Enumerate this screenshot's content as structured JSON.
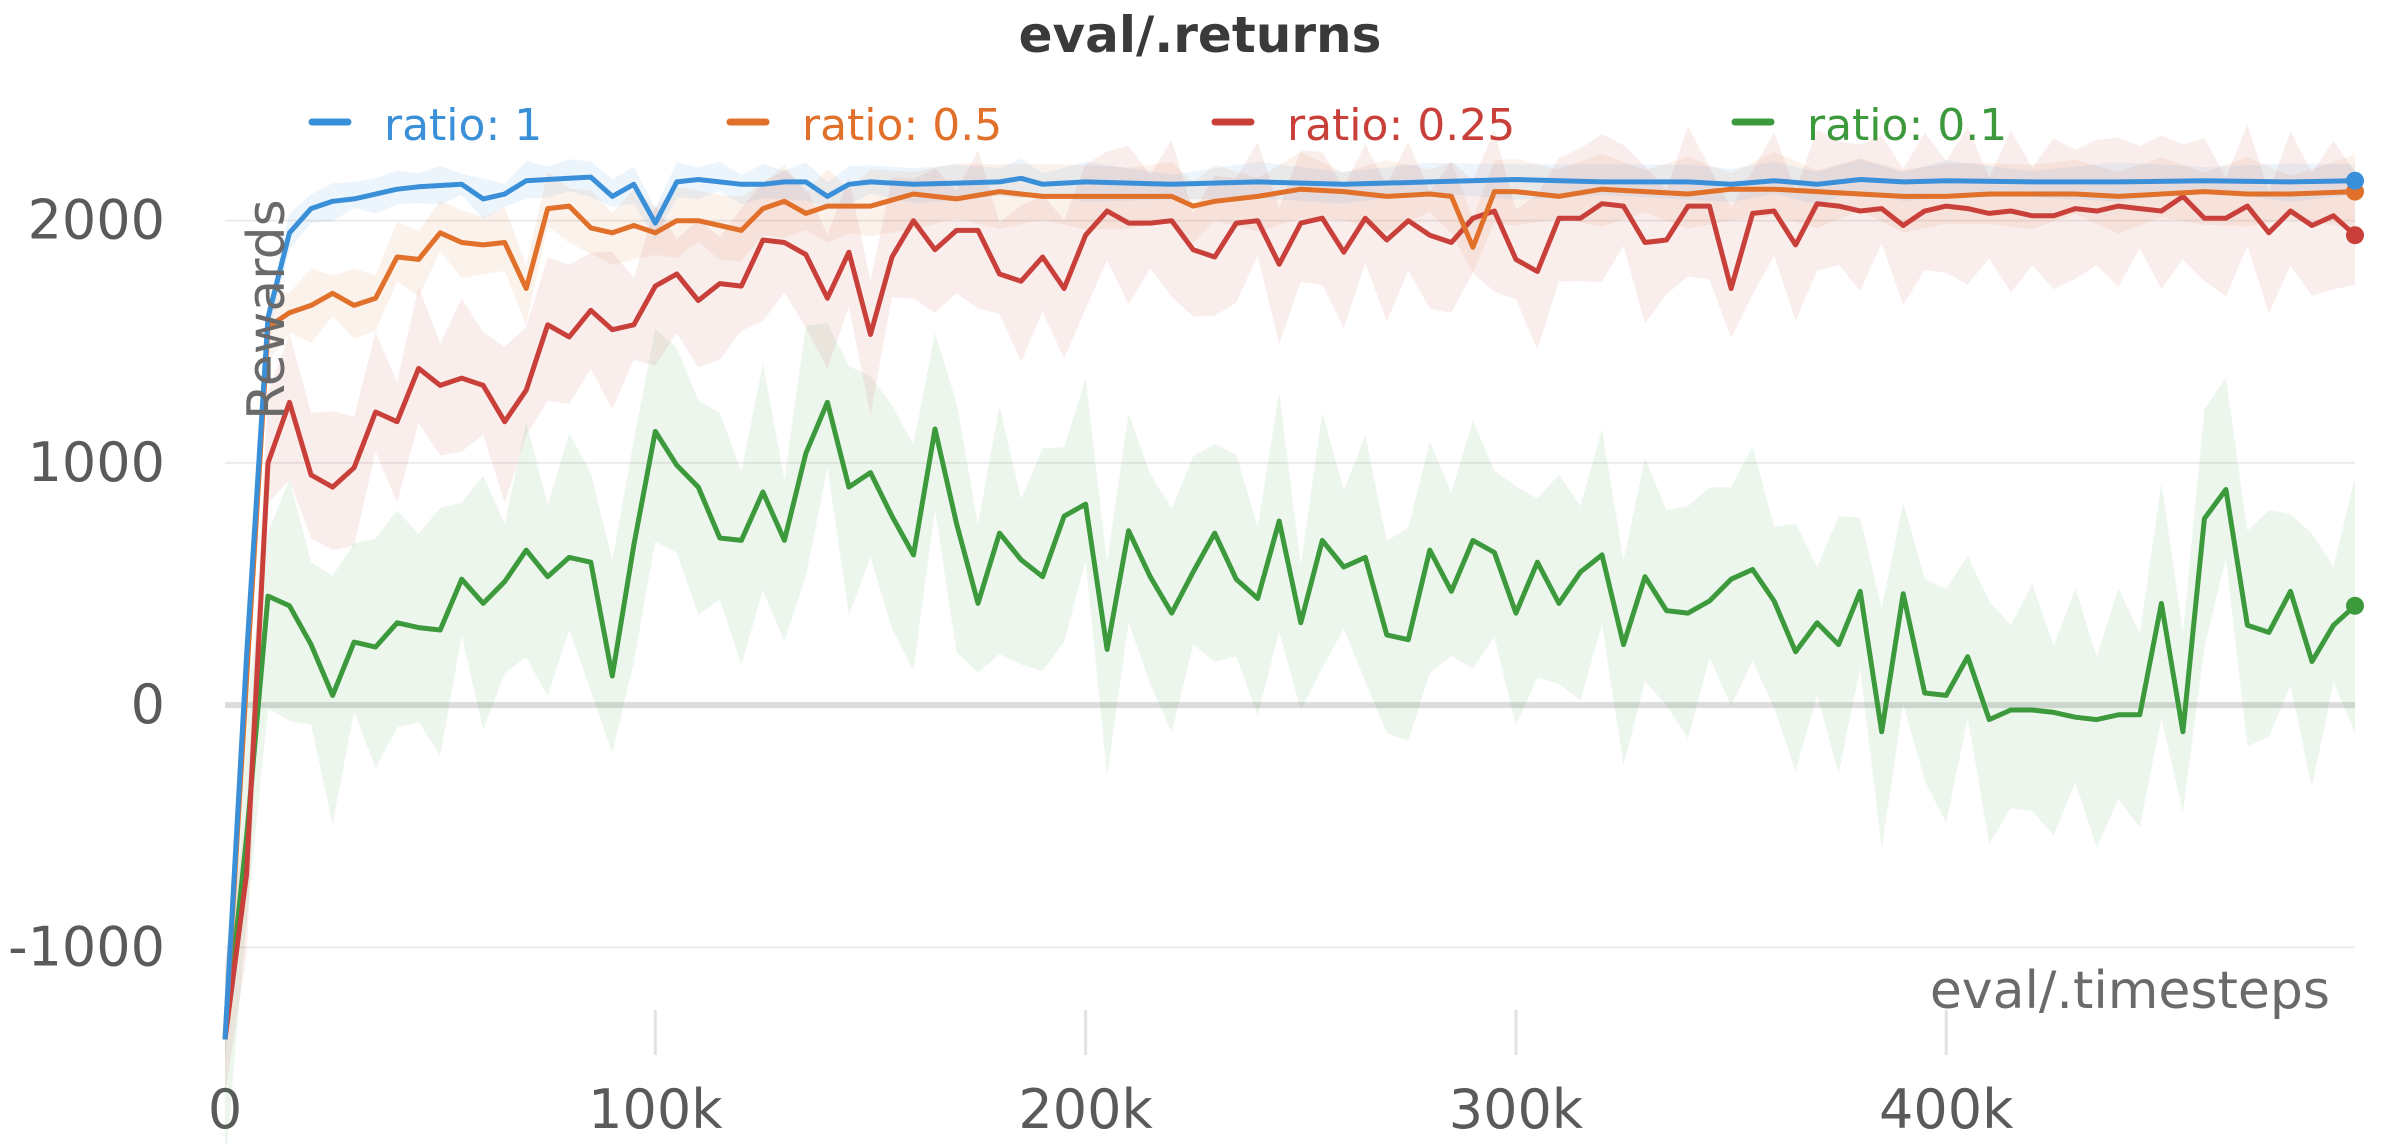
{
  "chart_data": {
    "type": "line",
    "title": "eval/.returns",
    "xlabel": "eval/.timesteps",
    "ylabel": "Rewards",
    "xlim": [
      0,
      495000
    ],
    "ylim": [
      -1300,
      2300
    ],
    "x_ticks": [
      {
        "value": 0,
        "label": "0"
      },
      {
        "value": 100000,
        "label": "100k"
      },
      {
        "value": 200000,
        "label": "200k"
      },
      {
        "value": 300000,
        "label": "300k"
      },
      {
        "value": 400000,
        "label": "400k"
      }
    ],
    "y_ticks": [
      {
        "value": -1000,
        "label": "-1000"
      },
      {
        "value": 0,
        "label": "0"
      },
      {
        "value": 1000,
        "label": "1000"
      },
      {
        "value": 2000,
        "label": "2000"
      }
    ],
    "grid": "horizontal",
    "legend_position": "top",
    "shaded_band": true,
    "series": [
      {
        "name": "ratio: 1",
        "color": "#3a8fd9",
        "x": [
          0,
          5000,
          10000,
          15000,
          20000,
          25000,
          30000,
          35000,
          40000,
          45000,
          50000,
          55000,
          60000,
          65000,
          70000,
          75000,
          80000,
          85000,
          90000,
          95000,
          100000,
          105000,
          110000,
          115000,
          120000,
          125000,
          130000,
          135000,
          140000,
          145000,
          150000,
          160000,
          170000,
          180000,
          185000,
          190000,
          200000,
          220000,
          240000,
          260000,
          280000,
          300000,
          320000,
          340000,
          350000,
          360000,
          370000,
          380000,
          390000,
          400000,
          420000,
          440000,
          460000,
          480000,
          495000
        ],
        "values": [
          -1380,
          200,
          1600,
          1950,
          2050,
          2080,
          2090,
          2110,
          2130,
          2140,
          2145,
          2150,
          2090,
          2110,
          2165,
          2170,
          2175,
          2180,
          2100,
          2150,
          1990,
          2160,
          2170,
          2160,
          2150,
          2150,
          2160,
          2160,
          2100,
          2150,
          2160,
          2150,
          2155,
          2160,
          2175,
          2150,
          2160,
          2150,
          2160,
          2150,
          2160,
          2170,
          2160,
          2160,
          2150,
          2165,
          2150,
          2170,
          2160,
          2165,
          2160,
          2160,
          2165,
          2160,
          2165
        ],
        "band_width": 60
      },
      {
        "name": "ratio: 0.5",
        "color": "#e0702a",
        "x": [
          0,
          5000,
          10000,
          15000,
          20000,
          25000,
          30000,
          35000,
          40000,
          45000,
          50000,
          55000,
          60000,
          65000,
          70000,
          75000,
          80000,
          85000,
          90000,
          95000,
          100000,
          105000,
          110000,
          115000,
          120000,
          125000,
          130000,
          135000,
          140000,
          145000,
          150000,
          160000,
          170000,
          180000,
          190000,
          200000,
          210000,
          220000,
          225000,
          230000,
          240000,
          250000,
          260000,
          270000,
          280000,
          285000,
          290000,
          295000,
          300000,
          310000,
          320000,
          330000,
          340000,
          350000,
          360000,
          370000,
          380000,
          390000,
          400000,
          410000,
          420000,
          430000,
          440000,
          450000,
          460000,
          470000,
          480000,
          495000
        ],
        "values": [
          -1380,
          100,
          1560,
          1620,
          1650,
          1700,
          1650,
          1680,
          1850,
          1840,
          1950,
          1910,
          1900,
          1910,
          1720,
          2050,
          2060,
          1970,
          1950,
          1980,
          1950,
          2000,
          2000,
          1980,
          1960,
          2050,
          2080,
          2030,
          2060,
          2060,
          2060,
          2110,
          2090,
          2120,
          2100,
          2100,
          2100,
          2100,
          2060,
          2080,
          2100,
          2130,
          2120,
          2100,
          2110,
          2100,
          1890,
          2120,
          2120,
          2100,
          2130,
          2120,
          2110,
          2130,
          2130,
          2120,
          2110,
          2100,
          2100,
          2110,
          2110,
          2110,
          2100,
          2110,
          2120,
          2110,
          2110,
          2120
        ],
        "band_width": 110
      },
      {
        "name": "ratio: 0.25",
        "color": "#c9403a",
        "x": [
          0,
          5000,
          10000,
          15000,
          20000,
          25000,
          30000,
          35000,
          40000,
          45000,
          50000,
          55000,
          60000,
          65000,
          70000,
          75000,
          80000,
          85000,
          90000,
          95000,
          100000,
          105000,
          110000,
          115000,
          120000,
          125000,
          130000,
          135000,
          140000,
          145000,
          150000,
          155000,
          160000,
          165000,
          170000,
          175000,
          180000,
          185000,
          190000,
          195000,
          200000,
          205000,
          210000,
          215000,
          220000,
          225000,
          230000,
          235000,
          240000,
          245000,
          250000,
          255000,
          260000,
          265000,
          270000,
          275000,
          280000,
          285000,
          290000,
          295000,
          300000,
          305000,
          310000,
          315000,
          320000,
          325000,
          330000,
          335000,
          340000,
          345000,
          350000,
          355000,
          360000,
          365000,
          370000,
          375000,
          380000,
          385000,
          390000,
          395000,
          400000,
          405000,
          410000,
          415000,
          420000,
          425000,
          430000,
          435000,
          440000,
          445000,
          450000,
          455000,
          460000,
          465000,
          470000,
          475000,
          480000,
          485000,
          490000,
          495000
        ],
        "values": [
          -1380,
          -700,
          1000,
          1250,
          950,
          900,
          980,
          1210,
          1170,
          1390,
          1320,
          1350,
          1320,
          1170,
          1300,
          1570,
          1520,
          1630,
          1550,
          1570,
          1730,
          1780,
          1670,
          1740,
          1730,
          1920,
          1910,
          1860,
          1680,
          1870,
          1530,
          1850,
          2000,
          1880,
          1960,
          1960,
          1780,
          1750,
          1850,
          1720,
          1940,
          2040,
          1990,
          1990,
          2000,
          1880,
          1850,
          1990,
          2000,
          1820,
          1990,
          2010,
          1870,
          2010,
          1920,
          2000,
          1940,
          1910,
          2010,
          2040,
          1840,
          1790,
          2010,
          2010,
          2070,
          2060,
          1910,
          1920,
          2060,
          2060,
          1720,
          2030,
          2040,
          1900,
          2070,
          2060,
          2040,
          2050,
          1980,
          2040,
          2060,
          2050,
          2030,
          2040,
          2020,
          2020,
          2050,
          2040,
          2060,
          2050,
          2040,
          2100,
          2010,
          2010,
          2060,
          1950,
          2040,
          1980,
          2020,
          1940
        ],
        "band_width": 240
      },
      {
        "name": "ratio: 0.1",
        "color": "#3c9a3c",
        "x": [
          0,
          5000,
          10000,
          15000,
          20000,
          25000,
          30000,
          35000,
          40000,
          45000,
          50000,
          55000,
          60000,
          65000,
          70000,
          75000,
          80000,
          85000,
          90000,
          95000,
          100000,
          105000,
          110000,
          115000,
          120000,
          125000,
          130000,
          135000,
          140000,
          145000,
          150000,
          155000,
          160000,
          165000,
          170000,
          175000,
          180000,
          185000,
          190000,
          195000,
          200000,
          205000,
          210000,
          215000,
          220000,
          225000,
          230000,
          235000,
          240000,
          245000,
          250000,
          255000,
          260000,
          265000,
          270000,
          275000,
          280000,
          285000,
          290000,
          295000,
          300000,
          305000,
          310000,
          315000,
          320000,
          325000,
          330000,
          335000,
          340000,
          345000,
          350000,
          355000,
          360000,
          365000,
          370000,
          375000,
          380000,
          385000,
          390000,
          395000,
          400000,
          405000,
          410000,
          415000,
          420000,
          425000,
          430000,
          435000,
          440000,
          445000,
          450000,
          455000,
          460000,
          465000,
          470000,
          475000,
          480000,
          485000,
          490000,
          495000
        ],
        "values": [
          -1380,
          -550,
          450,
          410,
          250,
          40,
          260,
          240,
          340,
          320,
          310,
          520,
          420,
          510,
          640,
          530,
          610,
          590,
          120,
          660,
          1130,
          990,
          900,
          690,
          680,
          880,
          680,
          1040,
          1250,
          900,
          960,
          780,
          620,
          1140,
          750,
          420,
          710,
          600,
          530,
          780,
          830,
          230,
          720,
          530,
          380,
          550,
          710,
          520,
          440,
          760,
          340,
          680,
          570,
          610,
          290,
          270,
          640,
          470,
          680,
          630,
          380,
          590,
          420,
          550,
          620,
          250,
          530,
          390,
          380,
          430,
          520,
          560,
          430,
          220,
          340,
          250,
          470,
          -110,
          460,
          50,
          40,
          200,
          -60,
          -20,
          -20,
          -30,
          -50,
          -60,
          -40,
          -40,
          420,
          -110,
          770,
          890,
          330,
          300,
          470,
          180,
          330,
          410
        ],
        "band_width": 380
      }
    ]
  }
}
